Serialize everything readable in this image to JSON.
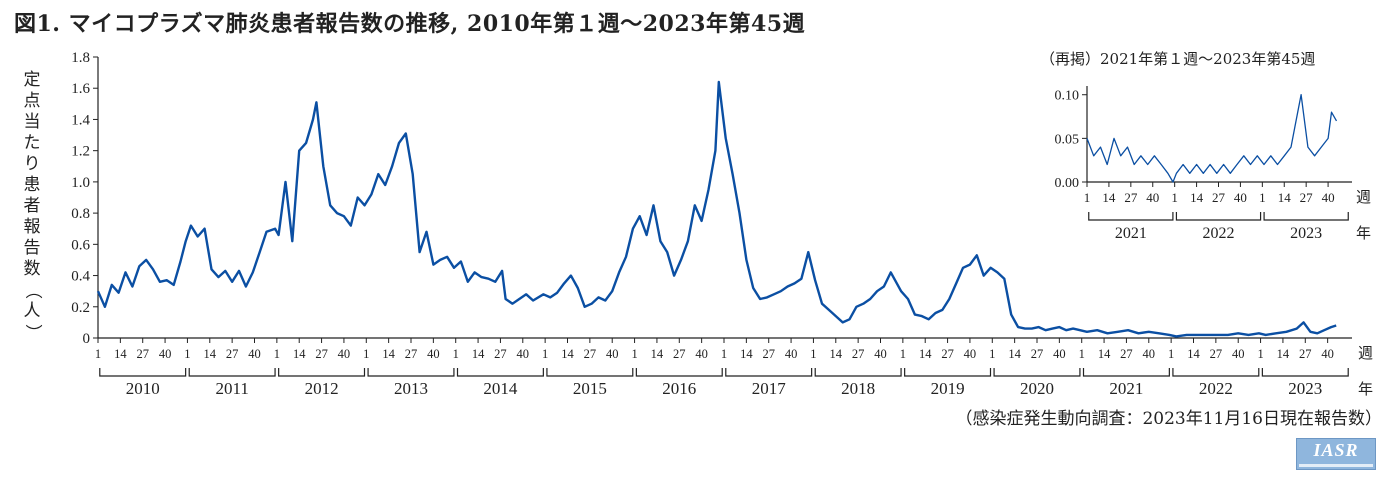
{
  "chart_data": [
    {
      "type": "line",
      "title": "図1. マイコプラズマ肺炎患者報告数の推移, 2010年第１週〜2023年第45週",
      "ylabel": "定点当たり患者報告数（人）",
      "xunit": "週",
      "yearunit": "年",
      "source": "（感染症発生動向調査：2023年11月16日現在報告数）",
      "logo": "IASR",
      "ylim": [
        0,
        1.8
      ],
      "yticks": [
        "0",
        "0.2",
        "0.4",
        "0.6",
        "0.8",
        "1.0",
        "1.2",
        "1.4",
        "1.6",
        "1.8"
      ],
      "week_ticks": [
        "1",
        "14",
        "27",
        "40"
      ],
      "years": [
        "2010",
        "2011",
        "2012",
        "2013",
        "2014",
        "2015",
        "2016",
        "2017",
        "2018",
        "2019",
        "2020",
        "2021",
        "2022",
        "2023"
      ],
      "color": "#0b4fa3",
      "grid": false,
      "series": [
        {
          "x_unit": "year.week",
          "points": [
            [
              2010.01,
              0.3
            ],
            [
              2010.05,
              0.2
            ],
            [
              2010.09,
              0.34
            ],
            [
              2010.13,
              0.29
            ],
            [
              2010.17,
              0.42
            ],
            [
              2010.21,
              0.33
            ],
            [
              2010.25,
              0.46
            ],
            [
              2010.29,
              0.5
            ],
            [
              2010.33,
              0.44
            ],
            [
              2010.37,
              0.36
            ],
            [
              2010.41,
              0.37
            ],
            [
              2010.45,
              0.34
            ],
            [
              2010.49,
              0.49
            ],
            [
              2010.52,
              0.62
            ],
            [
              2011.03,
              0.72
            ],
            [
              2011.07,
              0.65
            ],
            [
              2011.11,
              0.7
            ],
            [
              2011.15,
              0.44
            ],
            [
              2011.19,
              0.39
            ],
            [
              2011.23,
              0.43
            ],
            [
              2011.27,
              0.36
            ],
            [
              2011.31,
              0.43
            ],
            [
              2011.35,
              0.33
            ],
            [
              2011.39,
              0.42
            ],
            [
              2011.43,
              0.55
            ],
            [
              2011.47,
              0.68
            ],
            [
              2011.52,
              0.7
            ],
            [
              2012.02,
              0.66
            ],
            [
              2012.06,
              1.0
            ],
            [
              2012.1,
              0.62
            ],
            [
              2012.14,
              1.2
            ],
            [
              2012.18,
              1.25
            ],
            [
              2012.22,
              1.4
            ],
            [
              2012.24,
              1.51
            ],
            [
              2012.28,
              1.1
            ],
            [
              2012.32,
              0.85
            ],
            [
              2012.36,
              0.8
            ],
            [
              2012.4,
              0.78
            ],
            [
              2012.44,
              0.72
            ],
            [
              2012.48,
              0.9
            ],
            [
              2012.52,
              0.85
            ],
            [
              2013.04,
              0.92
            ],
            [
              2013.08,
              1.05
            ],
            [
              2013.12,
              0.98
            ],
            [
              2013.16,
              1.1
            ],
            [
              2013.2,
              1.25
            ],
            [
              2013.24,
              1.31
            ],
            [
              2013.28,
              1.05
            ],
            [
              2013.32,
              0.55
            ],
            [
              2013.36,
              0.68
            ],
            [
              2013.4,
              0.47
            ],
            [
              2013.44,
              0.5
            ],
            [
              2013.48,
              0.52
            ],
            [
              2013.52,
              0.45
            ],
            [
              2014.04,
              0.49
            ],
            [
              2014.08,
              0.36
            ],
            [
              2014.12,
              0.42
            ],
            [
              2014.16,
              0.39
            ],
            [
              2014.2,
              0.38
            ],
            [
              2014.24,
              0.36
            ],
            [
              2014.28,
              0.43
            ],
            [
              2014.3,
              0.25
            ],
            [
              2014.34,
              0.22
            ],
            [
              2014.38,
              0.25
            ],
            [
              2014.42,
              0.28
            ],
            [
              2014.46,
              0.24
            ],
            [
              2014.52,
              0.28
            ],
            [
              2015.04,
              0.26
            ],
            [
              2015.08,
              0.29
            ],
            [
              2015.12,
              0.35
            ],
            [
              2015.16,
              0.4
            ],
            [
              2015.2,
              0.32
            ],
            [
              2015.24,
              0.2
            ],
            [
              2015.28,
              0.22
            ],
            [
              2015.32,
              0.26
            ],
            [
              2015.36,
              0.24
            ],
            [
              2015.4,
              0.3
            ],
            [
              2015.44,
              0.42
            ],
            [
              2015.48,
              0.52
            ],
            [
              2015.52,
              0.7
            ],
            [
              2016.04,
              0.78
            ],
            [
              2016.08,
              0.66
            ],
            [
              2016.12,
              0.85
            ],
            [
              2016.16,
              0.62
            ],
            [
              2016.2,
              0.55
            ],
            [
              2016.24,
              0.4
            ],
            [
              2016.28,
              0.5
            ],
            [
              2016.32,
              0.62
            ],
            [
              2016.36,
              0.85
            ],
            [
              2016.4,
              0.75
            ],
            [
              2016.44,
              0.95
            ],
            [
              2016.48,
              1.2
            ],
            [
              2016.5,
              1.64
            ],
            [
              2017.02,
              1.28
            ],
            [
              2017.06,
              1.05
            ],
            [
              2017.1,
              0.8
            ],
            [
              2017.14,
              0.5
            ],
            [
              2017.18,
              0.32
            ],
            [
              2017.22,
              0.25
            ],
            [
              2017.26,
              0.26
            ],
            [
              2017.3,
              0.28
            ],
            [
              2017.34,
              0.3
            ],
            [
              2017.38,
              0.33
            ],
            [
              2017.42,
              0.35
            ],
            [
              2017.46,
              0.38
            ],
            [
              2017.5,
              0.55
            ],
            [
              2018.02,
              0.37
            ],
            [
              2018.06,
              0.22
            ],
            [
              2018.1,
              0.18
            ],
            [
              2018.14,
              0.14
            ],
            [
              2018.18,
              0.1
            ],
            [
              2018.22,
              0.12
            ],
            [
              2018.26,
              0.2
            ],
            [
              2018.3,
              0.22
            ],
            [
              2018.34,
              0.25
            ],
            [
              2018.38,
              0.3
            ],
            [
              2018.42,
              0.33
            ],
            [
              2018.46,
              0.42
            ],
            [
              2018.52,
              0.3
            ],
            [
              2019.04,
              0.25
            ],
            [
              2019.08,
              0.15
            ],
            [
              2019.12,
              0.14
            ],
            [
              2019.16,
              0.12
            ],
            [
              2019.2,
              0.16
            ],
            [
              2019.24,
              0.18
            ],
            [
              2019.28,
              0.25
            ],
            [
              2019.32,
              0.35
            ],
            [
              2019.36,
              0.45
            ],
            [
              2019.4,
              0.47
            ],
            [
              2019.44,
              0.53
            ],
            [
              2019.48,
              0.4
            ],
            [
              2019.52,
              0.45
            ],
            [
              2020.04,
              0.42
            ],
            [
              2020.08,
              0.38
            ],
            [
              2020.12,
              0.15
            ],
            [
              2020.16,
              0.07
            ],
            [
              2020.2,
              0.06
            ],
            [
              2020.24,
              0.06
            ],
            [
              2020.28,
              0.07
            ],
            [
              2020.32,
              0.05
            ],
            [
              2020.36,
              0.06
            ],
            [
              2020.4,
              0.07
            ],
            [
              2020.44,
              0.05
            ],
            [
              2020.48,
              0.06
            ],
            [
              2020.52,
              0.05
            ],
            [
              2021.04,
              0.04
            ],
            [
              2021.1,
              0.05
            ],
            [
              2021.16,
              0.03
            ],
            [
              2021.22,
              0.04
            ],
            [
              2021.28,
              0.05
            ],
            [
              2021.34,
              0.03
            ],
            [
              2021.4,
              0.04
            ],
            [
              2021.46,
              0.03
            ],
            [
              2021.52,
              0.02
            ],
            [
              2022.04,
              0.01
            ],
            [
              2022.1,
              0.02
            ],
            [
              2022.16,
              0.02
            ],
            [
              2022.22,
              0.02
            ],
            [
              2022.28,
              0.02
            ],
            [
              2022.34,
              0.02
            ],
            [
              2022.4,
              0.03
            ],
            [
              2022.46,
              0.02
            ],
            [
              2022.52,
              0.03
            ],
            [
              2023.04,
              0.02
            ],
            [
              2023.1,
              0.03
            ],
            [
              2023.16,
              0.04
            ],
            [
              2023.22,
              0.06
            ],
            [
              2023.26,
              0.1
            ],
            [
              2023.3,
              0.04
            ],
            [
              2023.34,
              0.03
            ],
            [
              2023.38,
              0.05
            ],
            [
              2023.42,
              0.07
            ],
            [
              2023.45,
              0.08
            ]
          ]
        }
      ]
    },
    {
      "type": "line",
      "title": "（再掲）2021年第１週〜2023年第45週",
      "xunit": "週",
      "yearunit": "年",
      "ylim": [
        0,
        0.11
      ],
      "yticks": [
        "0.00",
        "0.05",
        "0.10"
      ],
      "week_ticks": [
        "1",
        "14",
        "27",
        "40"
      ],
      "years": [
        "2021",
        "2022",
        "2023"
      ],
      "color": "#0b4fa3",
      "series": [
        {
          "x_unit": "year.week",
          "points": [
            [
              2021.01,
              0.05
            ],
            [
              2021.05,
              0.03
            ],
            [
              2021.09,
              0.04
            ],
            [
              2021.13,
              0.02
            ],
            [
              2021.17,
              0.05
            ],
            [
              2021.21,
              0.03
            ],
            [
              2021.25,
              0.04
            ],
            [
              2021.29,
              0.02
            ],
            [
              2021.33,
              0.03
            ],
            [
              2021.37,
              0.02
            ],
            [
              2021.41,
              0.03
            ],
            [
              2021.45,
              0.02
            ],
            [
              2021.49,
              0.01
            ],
            [
              2021.52,
              0.0
            ],
            [
              2022.02,
              0.01
            ],
            [
              2022.06,
              0.02
            ],
            [
              2022.1,
              0.01
            ],
            [
              2022.14,
              0.02
            ],
            [
              2022.18,
              0.01
            ],
            [
              2022.22,
              0.02
            ],
            [
              2022.26,
              0.01
            ],
            [
              2022.3,
              0.02
            ],
            [
              2022.34,
              0.01
            ],
            [
              2022.38,
              0.02
            ],
            [
              2022.42,
              0.03
            ],
            [
              2022.46,
              0.02
            ],
            [
              2022.5,
              0.03
            ],
            [
              2023.02,
              0.02
            ],
            [
              2023.06,
              0.03
            ],
            [
              2023.1,
              0.02
            ],
            [
              2023.14,
              0.03
            ],
            [
              2023.18,
              0.04
            ],
            [
              2023.22,
              0.08
            ],
            [
              2023.24,
              0.1
            ],
            [
              2023.28,
              0.04
            ],
            [
              2023.32,
              0.03
            ],
            [
              2023.36,
              0.04
            ],
            [
              2023.4,
              0.05
            ],
            [
              2023.42,
              0.08
            ],
            [
              2023.45,
              0.07
            ]
          ]
        }
      ]
    }
  ]
}
